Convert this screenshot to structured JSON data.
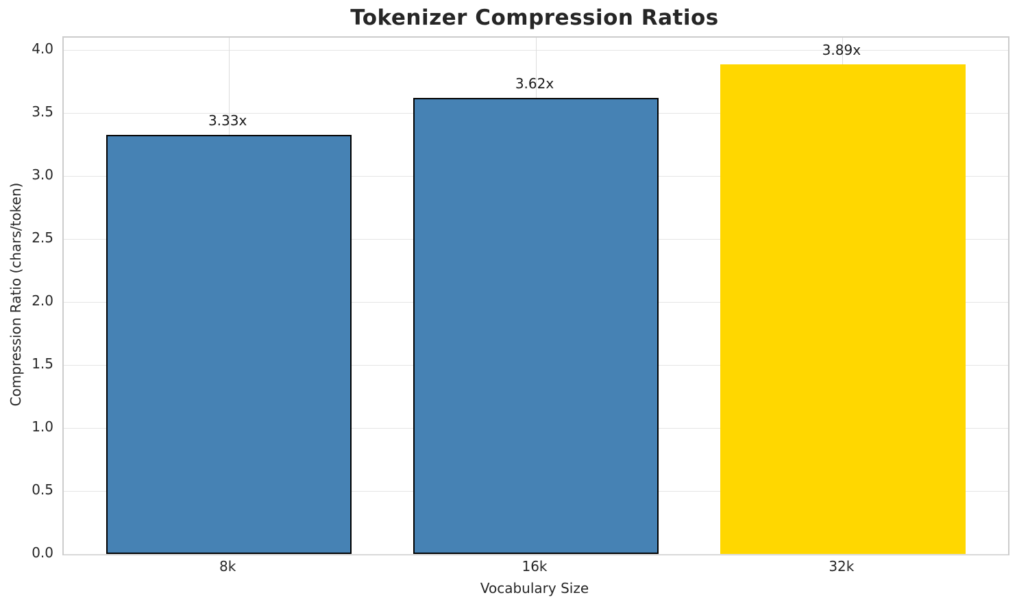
{
  "chart_data": {
    "type": "bar",
    "title": "Tokenizer Compression Ratios",
    "xlabel": "Vocabulary Size",
    "ylabel": "Compression Ratio (chars/token)",
    "categories": [
      "8k",
      "16k",
      "32k"
    ],
    "values": [
      3.33,
      3.62,
      3.89
    ],
    "bar_labels": [
      "3.33x",
      "3.62x",
      "3.89x"
    ],
    "bar_colors": [
      "#4682B4",
      "#4682B4",
      "#FFD700"
    ],
    "bar_edge_colors": [
      "#000000",
      "#000000",
      null
    ],
    "ytick_values": [
      0.0,
      0.5,
      1.0,
      1.5,
      2.0,
      2.5,
      3.0,
      3.5,
      4.0
    ],
    "ytick_labels": [
      "0.0",
      "0.5",
      "1.0",
      "1.5",
      "2.0",
      "2.5",
      "3.0",
      "3.5",
      "4.0"
    ],
    "ylim": [
      0,
      4.1
    ],
    "grid": true,
    "legend": "none",
    "colors": {
      "spine": "#cccccc",
      "gridline_h": "#e5e5e5",
      "gridline_v": "#dcdcdc",
      "text": "#262626"
    }
  }
}
